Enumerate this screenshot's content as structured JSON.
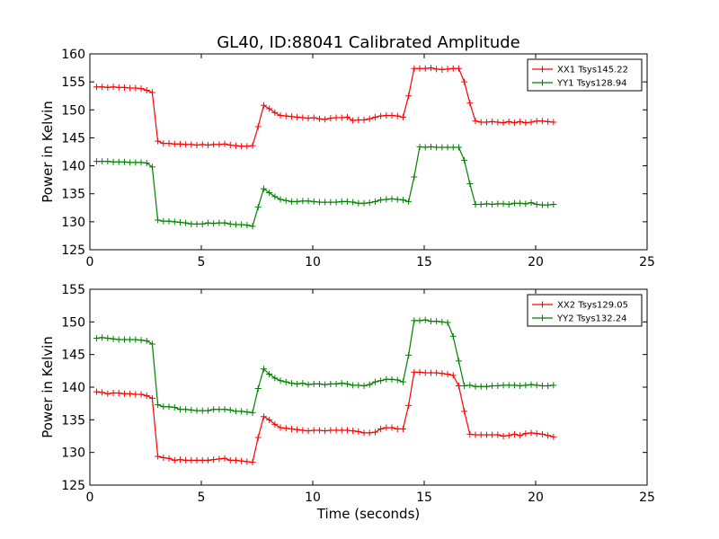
{
  "title": "GL40, ID:88041 Calibrated Amplitude",
  "colors": {
    "red": "#ff0000",
    "green": "#008000"
  },
  "chart_data": [
    {
      "type": "line",
      "xlabel": "",
      "ylabel": "Power in Kelvin",
      "xlim": [
        0,
        25
      ],
      "ylim": [
        125,
        160
      ],
      "xticks": [
        "0",
        "5",
        "10",
        "15",
        "20",
        "25"
      ],
      "yticks": [
        "125",
        "130",
        "135",
        "140",
        "145",
        "150",
        "155",
        "160"
      ],
      "grid": false,
      "legend_position": "top-right",
      "x": [
        0.3,
        0.55,
        0.8,
        1.05,
        1.3,
        1.55,
        1.8,
        2.05,
        2.3,
        2.55,
        2.8,
        3.05,
        3.3,
        3.55,
        3.8,
        4.05,
        4.3,
        4.55,
        4.8,
        5.05,
        5.3,
        5.55,
        5.8,
        6.05,
        6.3,
        6.55,
        6.8,
        7.05,
        7.3,
        7.55,
        7.8,
        8.05,
        8.3,
        8.55,
        8.8,
        9.05,
        9.3,
        9.55,
        9.8,
        10.05,
        10.3,
        10.55,
        10.8,
        11.05,
        11.3,
        11.55,
        11.8,
        12.05,
        12.3,
        12.55,
        12.8,
        13.05,
        13.3,
        13.55,
        13.8,
        14.05,
        14.3,
        14.55,
        14.8,
        15.05,
        15.3,
        15.55,
        15.8,
        16.05,
        16.3,
        16.55,
        16.8,
        17.05,
        17.3,
        17.55,
        17.8,
        18.05,
        18.3,
        18.55,
        18.8,
        19.05,
        19.3,
        19.55,
        19.8,
        20.05,
        20.3,
        20.55,
        20.8
      ],
      "series": [
        {
          "name": "XX1 Tsys145.22",
          "color": "#ff0000",
          "values": [
            154.1,
            154.1,
            154.0,
            154.1,
            154.0,
            154.0,
            153.9,
            153.9,
            153.8,
            153.5,
            153.1,
            144.4,
            144.0,
            144.0,
            143.9,
            143.9,
            143.8,
            143.8,
            143.7,
            143.8,
            143.7,
            143.8,
            143.8,
            143.9,
            143.7,
            143.6,
            143.5,
            143.5,
            143.6,
            147.0,
            150.8,
            150.2,
            149.5,
            149.0,
            148.9,
            148.8,
            148.7,
            148.6,
            148.5,
            148.6,
            148.4,
            148.3,
            148.5,
            148.6,
            148.6,
            148.7,
            148.1,
            148.2,
            148.2,
            148.4,
            148.7,
            148.9,
            149.0,
            149.0,
            148.9,
            148.7,
            152.5,
            157.4,
            157.4,
            157.4,
            157.5,
            157.3,
            157.2,
            157.3,
            157.4,
            157.4,
            155.0,
            151.2,
            148.0,
            147.8,
            147.8,
            147.9,
            147.8,
            147.7,
            147.9,
            147.7,
            147.9,
            147.7,
            147.8,
            148.0,
            148.0,
            147.9,
            147.8
          ]
        },
        {
          "name": "YY1 Tsys128.94",
          "color": "#008000",
          "values": [
            140.8,
            140.8,
            140.8,
            140.7,
            140.7,
            140.7,
            140.6,
            140.6,
            140.6,
            140.5,
            139.8,
            130.3,
            130.1,
            130.1,
            130.0,
            129.9,
            129.8,
            129.6,
            129.6,
            129.6,
            129.8,
            129.7,
            129.8,
            129.8,
            129.6,
            129.5,
            129.5,
            129.4,
            129.2,
            132.6,
            135.9,
            135.2,
            134.5,
            134.0,
            133.8,
            133.6,
            133.6,
            133.7,
            133.7,
            133.6,
            133.5,
            133.5,
            133.5,
            133.5,
            133.6,
            133.6,
            133.5,
            133.3,
            133.3,
            133.4,
            133.6,
            133.9,
            134.0,
            134.1,
            134.0,
            133.9,
            133.6,
            138.0,
            143.4,
            143.3,
            143.4,
            143.3,
            143.3,
            143.3,
            143.3,
            143.3,
            141.0,
            136.8,
            133.1,
            133.1,
            133.2,
            133.1,
            133.2,
            133.2,
            133.1,
            133.3,
            133.3,
            133.2,
            133.4,
            133.1,
            133.0,
            133.0,
            133.1
          ]
        }
      ]
    },
    {
      "type": "line",
      "xlabel": "Time (seconds)",
      "ylabel": "Power in Kelvin",
      "xlim": [
        0,
        25
      ],
      "ylim": [
        125,
        155
      ],
      "xticks": [
        "0",
        "5",
        "10",
        "15",
        "20",
        "25"
      ],
      "yticks": [
        "125",
        "130",
        "135",
        "140",
        "145",
        "150",
        "155"
      ],
      "grid": false,
      "legend_position": "top-right",
      "x": [
        0.3,
        0.55,
        0.8,
        1.05,
        1.3,
        1.55,
        1.8,
        2.05,
        2.3,
        2.55,
        2.8,
        3.05,
        3.3,
        3.55,
        3.8,
        4.05,
        4.3,
        4.55,
        4.8,
        5.05,
        5.3,
        5.55,
        5.8,
        6.05,
        6.3,
        6.55,
        6.8,
        7.05,
        7.3,
        7.55,
        7.8,
        8.05,
        8.3,
        8.55,
        8.8,
        9.05,
        9.3,
        9.55,
        9.8,
        10.05,
        10.3,
        10.55,
        10.8,
        11.05,
        11.3,
        11.55,
        11.8,
        12.05,
        12.3,
        12.55,
        12.8,
        13.05,
        13.3,
        13.55,
        13.8,
        14.05,
        14.3,
        14.55,
        14.8,
        15.05,
        15.3,
        15.55,
        15.8,
        16.05,
        16.3,
        16.55,
        16.8,
        17.05,
        17.3,
        17.55,
        17.8,
        18.05,
        18.3,
        18.55,
        18.8,
        19.05,
        19.3,
        19.55,
        19.8,
        20.05,
        20.3,
        20.55,
        20.8
      ],
      "series": [
        {
          "name": "XX2 Tsys129.05",
          "color": "#ff0000",
          "values": [
            139.3,
            139.2,
            139.0,
            139.1,
            139.1,
            139.0,
            139.0,
            138.9,
            138.9,
            138.7,
            138.3,
            129.4,
            129.2,
            129.1,
            128.8,
            128.9,
            128.8,
            128.8,
            128.8,
            128.8,
            128.8,
            128.9,
            129.0,
            129.1,
            128.8,
            128.8,
            128.7,
            128.6,
            128.5,
            132.3,
            135.5,
            135.0,
            134.3,
            133.8,
            133.7,
            133.6,
            133.5,
            133.4,
            133.3,
            133.4,
            133.4,
            133.3,
            133.4,
            133.4,
            133.4,
            133.4,
            133.3,
            133.2,
            133.0,
            133.0,
            133.1,
            133.6,
            133.8,
            133.8,
            133.6,
            133.6,
            137.2,
            142.3,
            142.3,
            142.2,
            142.2,
            142.2,
            142.1,
            142.0,
            141.8,
            140.2,
            136.3,
            132.8,
            132.7,
            132.7,
            132.7,
            132.7,
            132.7,
            132.5,
            132.6,
            132.8,
            132.6,
            132.9,
            133.0,
            132.9,
            132.8,
            132.6,
            132.4
          ]
        },
        {
          "name": "YY2 Tsys132.24",
          "color": "#008000",
          "values": [
            147.5,
            147.6,
            147.5,
            147.4,
            147.3,
            147.3,
            147.3,
            147.3,
            147.2,
            147.1,
            146.6,
            137.3,
            137.0,
            137.0,
            136.9,
            136.6,
            136.6,
            136.5,
            136.4,
            136.4,
            136.4,
            136.6,
            136.6,
            136.6,
            136.5,
            136.3,
            136.3,
            136.2,
            136.1,
            139.8,
            142.8,
            142.0,
            141.4,
            141.0,
            140.8,
            140.6,
            140.5,
            140.6,
            140.4,
            140.5,
            140.5,
            140.4,
            140.5,
            140.5,
            140.6,
            140.5,
            140.3,
            140.3,
            140.2,
            140.4,
            140.8,
            141.0,
            141.2,
            141.2,
            141.1,
            140.8,
            144.9,
            150.2,
            150.2,
            150.3,
            150.1,
            150.1,
            150.0,
            149.9,
            147.8,
            144.0,
            140.2,
            140.3,
            140.1,
            140.1,
            140.1,
            140.2,
            140.2,
            140.3,
            140.3,
            140.3,
            140.2,
            140.3,
            140.4,
            140.3,
            140.2,
            140.2,
            140.3
          ]
        }
      ]
    }
  ]
}
